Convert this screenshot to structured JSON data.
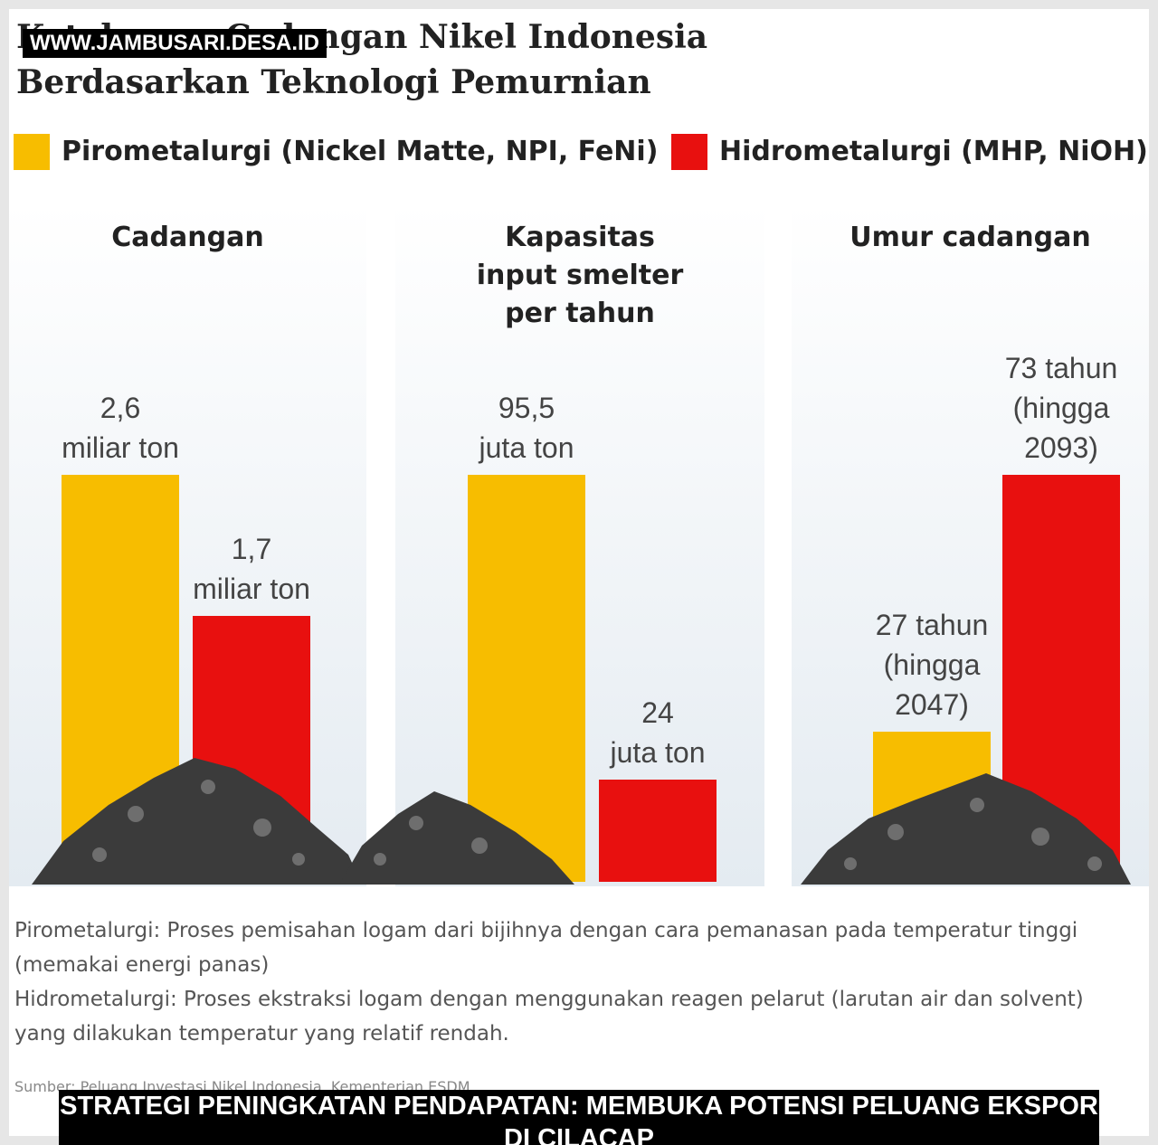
{
  "watermark": "WWW.JAMBUSARI.DESA.ID",
  "title": "Ketahanan Cadangan Nikel Indonesia",
  "subtitle": "Berdasarkan Teknologi Pemurnian",
  "legend": [
    {
      "label": "Pirometalurgi (Nickel Matte, NPI, FeNi)",
      "color": "#f7bd00"
    },
    {
      "label": "Hidrometalurgi (MHP, NiOH)",
      "color": "#e8100f"
    }
  ],
  "chart_data": [
    {
      "type": "bar",
      "title": "Cadangan",
      "values": [
        2.6,
        1.7
      ],
      "value_labels": [
        "2,6\nmiliar ton",
        "1,7\nmiliar ton"
      ]
    },
    {
      "type": "bar",
      "title": "Kapasitas\ninput smelter\nper tahun",
      "values": [
        95.5,
        24
      ],
      "value_labels": [
        "95,5\njuta ton",
        "24\njuta ton"
      ]
    },
    {
      "type": "bar",
      "title": "Umur cadangan",
      "values": [
        27,
        73
      ],
      "value_labels": [
        "27 tahun\n(hingga\n2047)",
        "73 tahun\n(hingga\n2093)"
      ]
    }
  ],
  "notes": [
    "Pirometalurgi: Proses pemisahan logam dari bijihnya dengan cara pemanasan pada temperatur tinggi (memakai energi panas)",
    "Hidrometalurgi: Proses ekstraksi logam dengan menggunakan reagen pelarut (larutan air dan solvent) yang dilakukan temperatur yang relatif rendah."
  ],
  "source": "Sumber: Peluang Investasi Nikel Indonesia, Kementerian ESDM",
  "caption": "STRATEGI PENINGKATAN PENDAPATAN: MEMBUKA POTENSI PELUANG EKSPOR DI CILACAP"
}
